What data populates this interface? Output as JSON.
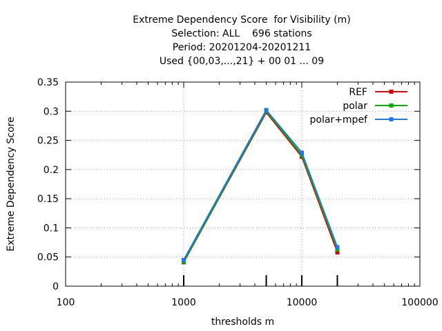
{
  "chart_data": {
    "type": "line",
    "title_lines": [
      "Extreme Dependency Score  for Visibility (m)",
      "Selection: ALL    696 stations",
      "Period: 20201204-20201211",
      "Used {00,03,...,21} + 00 01 ... 09"
    ],
    "xlabel": "thresholds m",
    "ylabel": "Extreme Dependency Score",
    "x_scale": "log",
    "xlim": [
      100,
      100000
    ],
    "ylim": [
      0,
      0.35
    ],
    "x_ticks": [
      100,
      1000,
      10000,
      100000
    ],
    "x_tick_labels": [
      "100",
      "1000",
      "10000",
      "100000"
    ],
    "y_ticks": [
      0,
      0.05,
      0.1,
      0.15,
      0.2,
      0.25,
      0.3,
      0.35
    ],
    "y_tick_labels": [
      "0",
      "0.05",
      "0.1",
      "0.15",
      "0.2",
      "0.25",
      "0.3",
      "0.35"
    ],
    "grid": true,
    "legend_position": "top-right",
    "x": [
      1000,
      5000,
      10000,
      20000
    ],
    "series": [
      {
        "name": "REF",
        "color": "#e00000",
        "values": [
          0.041,
          0.298,
          0.222,
          0.058
        ]
      },
      {
        "name": "polar",
        "color": "#00b000",
        "values": [
          0.042,
          0.3,
          0.225,
          0.063
        ]
      },
      {
        "name": "polar+mpef",
        "color": "#1e78e6",
        "values": [
          0.045,
          0.302,
          0.229,
          0.067
        ]
      }
    ]
  }
}
